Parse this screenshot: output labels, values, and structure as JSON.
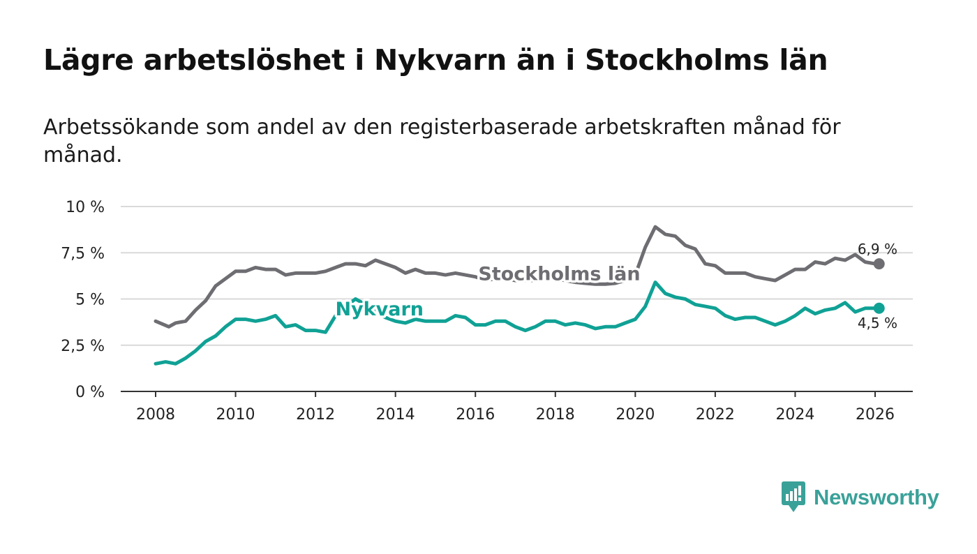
{
  "header": {
    "title": "Lägre arbetslöshet i Nykvarn än i Stockholms län",
    "subtitle": "Arbetssökande som andel av den registerbaserade arbetskraften månad för månad."
  },
  "brand": {
    "name": "Newsworthy",
    "color": "#3aa199",
    "icon": "newsworthy-logo-icon"
  },
  "chart_data": {
    "type": "line",
    "title": "Lägre arbetslöshet i Nykvarn än i Stockholms län",
    "subtitle": "Arbetssökande som andel av den registerbaserade arbetskraften månad för månad.",
    "xlabel": "",
    "ylabel": "",
    "xlim": [
      2007.2,
      2027.0
    ],
    "ylim": [
      0,
      10
    ],
    "grid": true,
    "legend": "inline labels",
    "x_ticks": [
      {
        "value": 2008,
        "label": "2008"
      },
      {
        "value": 2010,
        "label": "2010"
      },
      {
        "value": 2012,
        "label": "2012"
      },
      {
        "value": 2014,
        "label": "2014"
      },
      {
        "value": 2016,
        "label": "2016"
      },
      {
        "value": 2018,
        "label": "2018"
      },
      {
        "value": 2020,
        "label": "2020"
      },
      {
        "value": 2022,
        "label": "2022"
      },
      {
        "value": 2024,
        "label": "2024"
      },
      {
        "value": 2026,
        "label": "2026"
      }
    ],
    "y_ticks": [
      {
        "value": 0,
        "label": "0 %"
      },
      {
        "value": 2.5,
        "label": "2,5 %"
      },
      {
        "value": 5,
        "label": "5 %"
      },
      {
        "value": 7.5,
        "label": "7,5 %"
      },
      {
        "value": 10,
        "label": "10 %"
      }
    ],
    "series": [
      {
        "name": "Stockholms län",
        "color": "#6d6d72",
        "label_year": 2018.1,
        "label_value": 6.4,
        "end_label": "6,9 %",
        "x": [
          2008.0,
          2008.33,
          2008.5,
          2008.75,
          2009.0,
          2009.25,
          2009.5,
          2009.75,
          2010.0,
          2010.25,
          2010.5,
          2010.75,
          2011.0,
          2011.25,
          2011.5,
          2011.75,
          2012.0,
          2012.25,
          2012.5,
          2012.75,
          2013.0,
          2013.25,
          2013.5,
          2013.75,
          2014.0,
          2014.25,
          2014.5,
          2014.75,
          2015.0,
          2015.25,
          2015.5,
          2015.75,
          2016.0,
          2016.25,
          2016.5,
          2016.75,
          2017.0,
          2017.25,
          2017.5,
          2017.75,
          2018.0,
          2018.25,
          2018.5,
          2018.75,
          2019.0,
          2019.25,
          2019.5,
          2019.75,
          2020.0,
          2020.25,
          2020.5,
          2020.75,
          2021.0,
          2021.25,
          2021.5,
          2021.75,
          2022.0,
          2022.25,
          2022.5,
          2022.75,
          2023.0,
          2023.25,
          2023.5,
          2023.75,
          2024.0,
          2024.25,
          2024.5,
          2024.75,
          2025.0,
          2025.25,
          2025.5,
          2025.75,
          2026.0,
          2026.1
        ],
        "values": [
          3.8,
          3.5,
          3.7,
          3.8,
          4.4,
          4.9,
          5.7,
          6.1,
          6.5,
          6.5,
          6.7,
          6.6,
          6.6,
          6.3,
          6.4,
          6.4,
          6.4,
          6.5,
          6.7,
          6.9,
          6.9,
          6.8,
          7.1,
          6.9,
          6.7,
          6.4,
          6.6,
          6.4,
          6.4,
          6.3,
          6.4,
          6.3,
          6.2,
          6.0,
          6.1,
          6.1,
          6.0,
          6.0,
          6.0,
          6.1,
          6.1,
          6.0,
          5.9,
          5.85,
          5.8,
          5.8,
          5.85,
          6.0,
          6.3,
          7.8,
          8.9,
          8.5,
          8.4,
          7.9,
          7.7,
          6.9,
          6.8,
          6.4,
          6.4,
          6.4,
          6.2,
          6.1,
          6.0,
          6.3,
          6.6,
          6.6,
          7.0,
          6.9,
          7.2,
          7.1,
          7.4,
          7.0,
          6.9,
          6.9
        ]
      },
      {
        "name": "Nykvarn",
        "color": "#10a195",
        "label_year": 2013.6,
        "label_value": 4.5,
        "end_label": "4,5 %",
        "x": [
          2008.0,
          2008.25,
          2008.5,
          2008.75,
          2009.0,
          2009.25,
          2009.5,
          2009.75,
          2010.0,
          2010.25,
          2010.5,
          2010.75,
          2011.0,
          2011.25,
          2011.5,
          2011.75,
          2012.0,
          2012.25,
          2012.5,
          2012.75,
          2013.0,
          2013.25,
          2013.5,
          2013.75,
          2014.0,
          2014.25,
          2014.5,
          2014.75,
          2015.0,
          2015.25,
          2015.5,
          2015.75,
          2016.0,
          2016.25,
          2016.5,
          2016.75,
          2017.0,
          2017.25,
          2017.5,
          2017.75,
          2018.0,
          2018.25,
          2018.5,
          2018.75,
          2019.0,
          2019.25,
          2019.5,
          2019.75,
          2020.0,
          2020.25,
          2020.5,
          2020.75,
          2021.0,
          2021.25,
          2021.5,
          2021.75,
          2022.0,
          2022.25,
          2022.5,
          2022.75,
          2023.0,
          2023.25,
          2023.5,
          2023.75,
          2024.0,
          2024.25,
          2024.5,
          2024.75,
          2025.0,
          2025.25,
          2025.5,
          2025.75,
          2026.0,
          2026.1
        ],
        "values": [
          1.5,
          1.6,
          1.5,
          1.8,
          2.2,
          2.7,
          3.0,
          3.5,
          3.9,
          3.9,
          3.8,
          3.9,
          4.1,
          3.5,
          3.6,
          3.3,
          3.3,
          3.2,
          4.1,
          4.6,
          5.0,
          4.7,
          4.3,
          4.0,
          3.8,
          3.7,
          3.9,
          3.8,
          3.8,
          3.8,
          4.1,
          4.0,
          3.6,
          3.6,
          3.8,
          3.8,
          3.5,
          3.3,
          3.5,
          3.8,
          3.8,
          3.6,
          3.7,
          3.6,
          3.4,
          3.5,
          3.5,
          3.7,
          3.9,
          4.6,
          5.9,
          5.3,
          5.1,
          5.0,
          4.7,
          4.6,
          4.5,
          4.1,
          3.9,
          4.0,
          4.0,
          3.8,
          3.6,
          3.8,
          4.1,
          4.5,
          4.2,
          4.4,
          4.5,
          4.8,
          4.3,
          4.5,
          4.5,
          4.5
        ]
      }
    ]
  }
}
